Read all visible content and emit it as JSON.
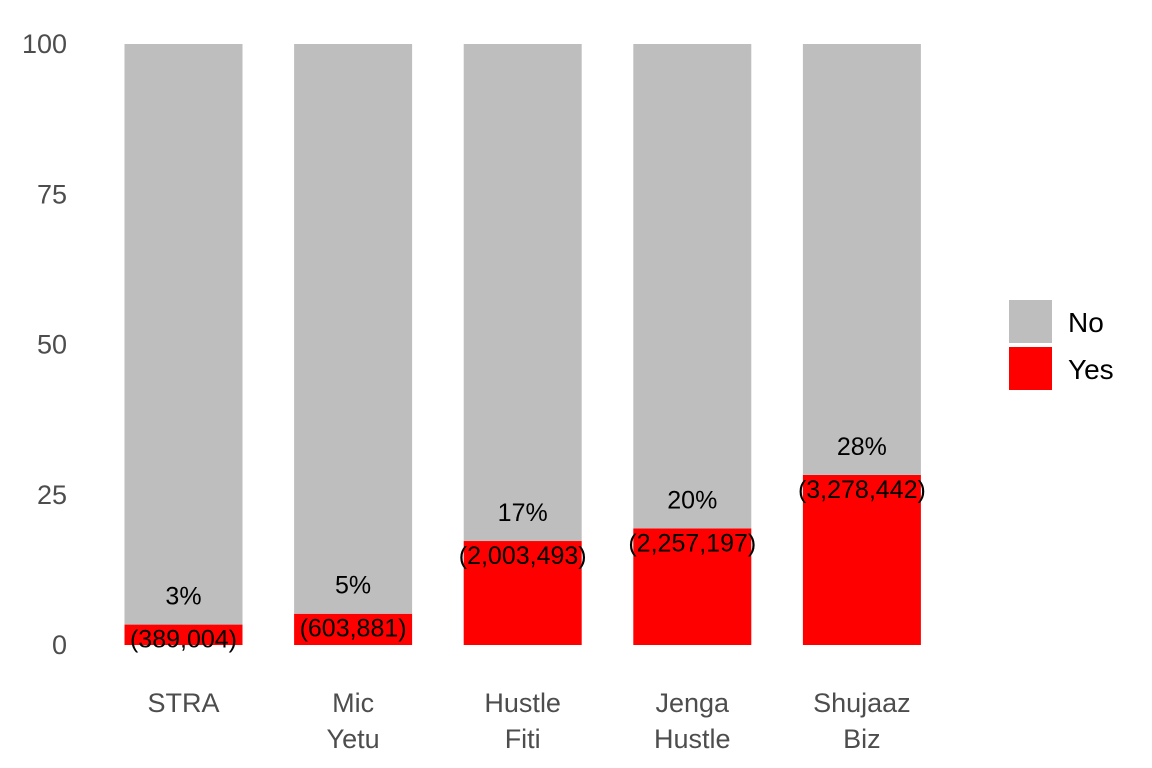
{
  "chart_data": {
    "type": "bar",
    "stacked": true,
    "categories": [
      [
        "STRA"
      ],
      [
        "Mic",
        "Yetu"
      ],
      [
        "Hustle",
        "Fiti"
      ],
      [
        "Jenga",
        "Hustle"
      ],
      [
        "Shujaaz",
        "Biz"
      ]
    ],
    "series": [
      {
        "name": "Yes",
        "values": [
          3.4,
          5.2,
          17.3,
          19.4,
          28.3
        ]
      },
      {
        "name": "No",
        "values": [
          96.6,
          94.8,
          82.7,
          80.6,
          71.7
        ]
      }
    ],
    "data_labels": [
      {
        "pct": "3%",
        "count": "(389,004)"
      },
      {
        "pct": "5%",
        "count": "(603,881)"
      },
      {
        "pct": "17%",
        "count": "(2,003,493)"
      },
      {
        "pct": "20%",
        "count": "(2,257,197)"
      },
      {
        "pct": "28%",
        "count": "(3,278,442)"
      }
    ],
    "y_ticks": [
      0,
      25,
      50,
      75,
      100
    ],
    "ylim": [
      0,
      100
    ],
    "title": "",
    "xlabel": "",
    "ylabel": "",
    "grid": false,
    "legend": {
      "position": "right",
      "order": [
        "No",
        "Yes"
      ]
    },
    "colors": {
      "Yes": "#ff0000",
      "No": "#bebebe"
    }
  }
}
